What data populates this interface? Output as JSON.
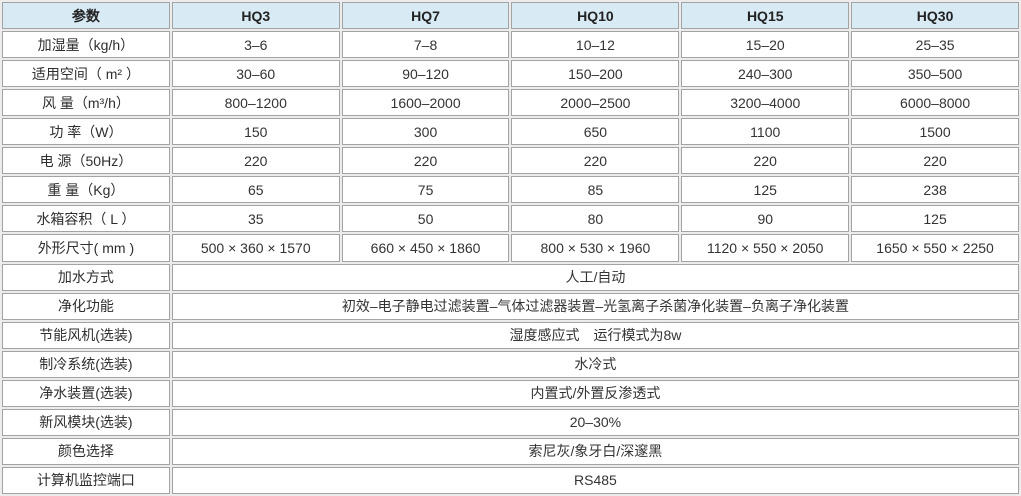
{
  "colors": {
    "header_bg": "#d8eaf4",
    "cell_bg": "#ffffff",
    "border": "#a3a3a3",
    "text": "#333333"
  },
  "table": {
    "header": [
      "参数",
      "HQ3",
      "HQ7",
      "HQ10",
      "HQ15",
      "HQ30"
    ],
    "spec_rows": [
      {
        "label": "加湿量（kg/h）",
        "values": [
          "3–6",
          "7–8",
          "10–12",
          "15–20",
          "25–35"
        ]
      },
      {
        "label": "适用空间（ m² ）",
        "values": [
          "30–60",
          "90–120",
          "150–200",
          "240–300",
          "350–500"
        ]
      },
      {
        "label": "风 量（m³/h）",
        "values": [
          "800–1200",
          "1600–2000",
          "2000–2500",
          "3200–4000",
          "6000–8000"
        ]
      },
      {
        "label": "功 率（W）",
        "values": [
          "150",
          "300",
          "650",
          "1100",
          "1500"
        ]
      },
      {
        "label": "电 源（50Hz）",
        "values": [
          "220",
          "220",
          "220",
          "220",
          "220"
        ]
      },
      {
        "label": "重 量（Kg）",
        "values": [
          "65",
          "75",
          "85",
          "125",
          "238"
        ]
      },
      {
        "label": "水箱容积（ L ）",
        "values": [
          "35",
          "50",
          "80",
          "90",
          "125"
        ]
      },
      {
        "label": "外形尺寸( mm )",
        "values": [
          "500 × 360 × 1570",
          "660 × 450 × 1860",
          "800 × 530 × 1960",
          "1120 × 550 × 2050",
          "1650 × 550 × 2250"
        ]
      }
    ],
    "span_rows": [
      {
        "label": "加水方式",
        "value": "人工/自动"
      },
      {
        "label": "净化功能",
        "value": "初效–电子静电过滤装置–气体过滤器装置–光氢离子杀菌净化装置–负离子净化装置"
      },
      {
        "label": "节能风机(选装)",
        "value": "湿度感应式　运行模式为8w"
      },
      {
        "label": "制冷系统(选装)",
        "value": "水冷式"
      },
      {
        "label": "净水装置(选装)",
        "value": "内置式/外置反渗透式"
      },
      {
        "label": "新风模块(选装)",
        "value": "20–30%"
      },
      {
        "label": "颜色选择",
        "value": "索尼灰/象牙白/深邃黑"
      },
      {
        "label": "计算机监控端口",
        "value": "RS485"
      }
    ]
  }
}
